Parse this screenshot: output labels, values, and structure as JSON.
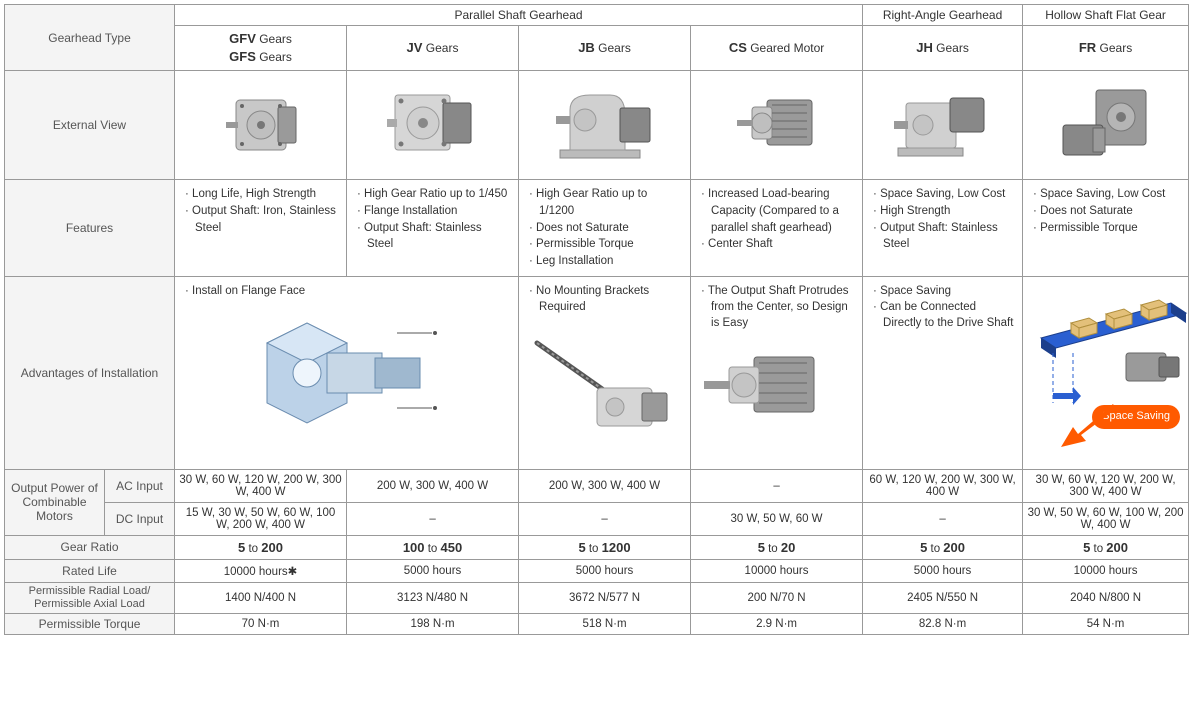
{
  "headers": {
    "gearhead_type": "Gearhead Type",
    "parallel_shaft": "Parallel Shaft Gearhead",
    "right_angle": "Right-Angle Gearhead",
    "hollow_shaft": "Hollow Shaft Flat Gear",
    "external_view": "External View",
    "features": "Features",
    "advantages": "Advantages of Installation",
    "output_power": "Output Power of Combinable Motors",
    "ac_input": "AC Input",
    "dc_input": "DC Input",
    "gear_ratio": "Gear Ratio",
    "rated_life": "Rated Life",
    "perm_load": "Permissible Radial Load/ Permissible Axial Load",
    "perm_torque": "Permissible Torque"
  },
  "columns": [
    {
      "name_html": "<b>GFV</b> Gears<br><b>GFS</b> Gears",
      "features": [
        "Long Life, High Strength",
        "Output Shaft: Iron, Stainless Steel"
      ],
      "adv": [
        "Install on Flange Face"
      ],
      "ac": "30 W, 60 W, 120 W, 200 W, 300 W, 400 W",
      "dc": "15 W, 30 W, 50 W, 60 W, 100 W, 200 W, 400 W",
      "ratio_low": "5",
      "ratio_high": "200",
      "life": "10000 hours✱",
      "load": "1400 N/400 N",
      "torque": "70 N·m"
    },
    {
      "name_html": "<b>JV</b> Gears",
      "features": [
        "High Gear Ratio up to 1/450",
        "Flange Installation",
        "Output Shaft: Stainless Steel"
      ],
      "adv": [],
      "ac": "200 W, 300 W, 400 W",
      "dc": "–",
      "ratio_low": "100",
      "ratio_high": "450",
      "life": "5000 hours",
      "load": "3123 N/480 N",
      "torque": "198 N·m"
    },
    {
      "name_html": "<b>JB</b> Gears",
      "features": [
        "High Gear Ratio up to 1/1200",
        "Does not Saturate",
        "Permissible Torque",
        "Leg Installation"
      ],
      "adv": [
        "No Mounting Brackets Required"
      ],
      "ac": "200 W, 300 W, 400 W",
      "dc": "–",
      "ratio_low": "5",
      "ratio_high": "1200",
      "life": "5000 hours",
      "load": "3672 N/577 N",
      "torque": "518 N·m"
    },
    {
      "name_html": "<b>CS</b> Geared Motor",
      "features": [
        "Increased Load-bearing Capacity (Compared to a parallel shaft gearhead)",
        "Center Shaft"
      ],
      "adv": [
        "The Output Shaft Protrudes from the Center, so Design is Easy"
      ],
      "ac": "–",
      "dc": "30 W, 50 W, 60 W",
      "ratio_low": "5",
      "ratio_high": "20",
      "life": "10000 hours",
      "load": "200 N/70 N",
      "torque": "2.9 N·m"
    },
    {
      "name_html": "<b>JH</b> Gears",
      "features": [
        "Space Saving, Low Cost",
        "High Strength",
        "Output Shaft: Stainless Steel"
      ],
      "adv": [
        "Space Saving",
        "Can be Connected Directly to the Drive Shaft"
      ],
      "ac": "60 W, 120 W, 200 W, 300 W, 400 W",
      "dc": "–",
      "ratio_low": "5",
      "ratio_high": "200",
      "life": "5000 hours",
      "load": "2405 N/550 N",
      "torque": "82.8 N·m"
    },
    {
      "name_html": "<b>FR</b> Gears",
      "features": [
        "Space Saving, Low Cost",
        "Does not Saturate",
        "Permissible Torque"
      ],
      "adv": [],
      "ac": "30 W, 60 W, 120 W, 200 W, 300 W, 400 W",
      "dc": "30 W, 50 W, 60 W, 100 W, 200 W, 400 W",
      "ratio_low": "5",
      "ratio_high": "200",
      "life": "10000 hours",
      "load": "2040 N/800 N",
      "torque": "54 N·m"
    }
  ],
  "misc": {
    "ratio_to": " to ",
    "space_saving_badge": "Space Saving"
  },
  "style": {
    "bg_header": "#f4f4f4",
    "border": "#999999",
    "badge_bg": "#ff5a00"
  }
}
